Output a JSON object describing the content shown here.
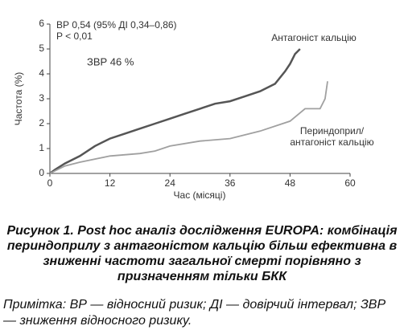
{
  "chart_data": {
    "type": "line",
    "annotations": [
      "ВР 0,54 (95% ДІ 0,34–0,86)",
      "P < 0,01",
      "ЗВР 46 %"
    ],
    "xlabel": "Час (місяці)",
    "ylabel": "Частота (%)",
    "xlim": [
      0,
      60
    ],
    "xticks": [
      0,
      12,
      24,
      36,
      48,
      60
    ],
    "ylim": [
      0,
      6
    ],
    "yticks": [
      0,
      1,
      2,
      3,
      4,
      5,
      6
    ],
    "series": [
      {
        "name": "Антагоніст кальцію",
        "color": "#555555",
        "x": [
          0,
          1,
          3,
          6,
          9,
          12,
          15,
          18,
          21,
          24,
          27,
          30,
          33,
          36,
          39,
          42,
          45,
          47,
          48,
          49,
          50
        ],
        "values": [
          0,
          0.15,
          0.4,
          0.7,
          1.1,
          1.4,
          1.6,
          1.8,
          2.0,
          2.2,
          2.4,
          2.6,
          2.8,
          2.9,
          3.1,
          3.3,
          3.6,
          4.1,
          4.4,
          4.8,
          5.0
        ]
      },
      {
        "name": "Периндоприл/ антагоніст кальцію",
        "color": "#a0a0a0",
        "x": [
          0,
          3,
          6,
          12,
          18,
          21,
          24,
          30,
          36,
          42,
          48,
          51,
          54,
          55,
          55.5
        ],
        "values": [
          0,
          0.3,
          0.45,
          0.7,
          0.8,
          0.9,
          1.1,
          1.3,
          1.4,
          1.7,
          2.1,
          2.6,
          2.6,
          3.0,
          3.7
        ]
      }
    ]
  },
  "caption": "Рисунок 1. Post hoc аналіз дослідження EUROPA: комбінація периндоприлу з антагоністом кальцію більш ефективна в зниженні частоти загальної смерті порівняно з призначенням тільки БКК",
  "note": "Примітка: ВР — відносний ризик; ДІ — довірчий інтервал; ЗВР — зниження відносного ризику."
}
